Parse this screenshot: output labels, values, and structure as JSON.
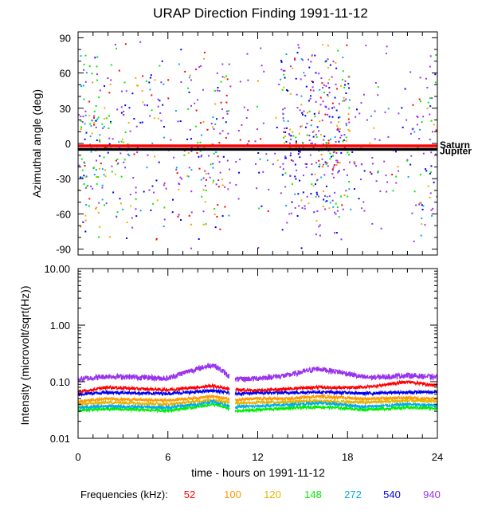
{
  "chart_data": [
    {
      "type": "scatter",
      "title": "URAP Direction Finding  1991-11-12",
      "ylabel": "Azimuthal angle (deg)",
      "xlim": [
        0,
        24
      ],
      "ylim": [
        -95,
        95
      ],
      "yticks": [
        -90,
        -60,
        -30,
        0,
        30,
        60,
        90
      ],
      "ytick_labels": [
        "-90",
        "-60",
        "-30",
        "0",
        "30",
        "60",
        "90"
      ],
      "reference_lines": [
        {
          "name": "Saturn",
          "y": -2,
          "color": "#ff0000"
        },
        {
          "name": "Jupiter",
          "y": -5,
          "color": "#000000"
        }
      ],
      "series_note": "Scattered direction-finding points per frequency channel; dense clusters near 0-2.5 h, 7-10 h, 14-18 h and 23-24 h."
    },
    {
      "type": "line",
      "ylabel": "Intensity (microvolt/sqrt(Hz))",
      "xlabel": "time - hours on 1991-11-12",
      "xlim": [
        0,
        24
      ],
      "ylim": [
        0.01,
        10
      ],
      "yscale": "log",
      "yticks": [
        0.01,
        0.1,
        1,
        10
      ],
      "ytick_labels": [
        "0.01",
        "0.10",
        "1.00",
        "10.00"
      ],
      "xticks": [
        0,
        6,
        12,
        18,
        24
      ],
      "xtick_labels": [
        "0",
        "6",
        "12",
        "18",
        "24"
      ],
      "gaps": [
        [
          10.1,
          10.5
        ]
      ],
      "series": [
        {
          "name": "52",
          "color": "#ff0000",
          "x": [
            0,
            2,
            4,
            6,
            8,
            9,
            10,
            10.5,
            12,
            14,
            16,
            18,
            19,
            20,
            22,
            24
          ],
          "values": [
            0.065,
            0.08,
            0.075,
            0.072,
            0.08,
            0.085,
            0.075,
            0.072,
            0.07,
            0.075,
            0.08,
            0.078,
            0.08,
            0.085,
            0.1,
            0.085
          ]
        },
        {
          "name": "100",
          "color": "#ff9900",
          "x": [
            0,
            2,
            4,
            6,
            8,
            9,
            10,
            10.5,
            12,
            14,
            16,
            18,
            19,
            20,
            22,
            24
          ],
          "values": [
            0.045,
            0.05,
            0.048,
            0.047,
            0.052,
            0.055,
            0.05,
            0.048,
            0.05,
            0.05,
            0.055,
            0.052,
            0.05,
            0.05,
            0.052,
            0.05
          ]
        },
        {
          "name": "120",
          "color": "#e8b400",
          "x": [
            0,
            2,
            4,
            6,
            8,
            9,
            10,
            10.5,
            12,
            14,
            16,
            18,
            19,
            20,
            22,
            24
          ],
          "values": [
            0.04,
            0.043,
            0.042,
            0.04,
            0.045,
            0.048,
            0.044,
            0.042,
            0.043,
            0.044,
            0.046,
            0.044,
            0.043,
            0.044,
            0.046,
            0.045
          ]
        },
        {
          "name": "148",
          "color": "#00ee00",
          "x": [
            0,
            2,
            4,
            6,
            8,
            9,
            10,
            10.5,
            12,
            14,
            16,
            18,
            19,
            20,
            22,
            24
          ],
          "values": [
            0.031,
            0.033,
            0.032,
            0.031,
            0.036,
            0.04,
            0.034,
            0.03,
            0.032,
            0.034,
            0.036,
            0.034,
            0.032,
            0.033,
            0.035,
            0.034
          ]
        },
        {
          "name": "272",
          "color": "#00aaee",
          "x": [
            0,
            2,
            4,
            6,
            8,
            9,
            10,
            10.5,
            12,
            14,
            16,
            18,
            19,
            20,
            22,
            24
          ],
          "values": [
            0.035,
            0.037,
            0.036,
            0.035,
            0.04,
            0.045,
            0.038,
            0.036,
            0.037,
            0.039,
            0.042,
            0.039,
            0.036,
            0.037,
            0.04,
            0.038
          ]
        },
        {
          "name": "540",
          "color": "#0000ee",
          "x": [
            0,
            2,
            4,
            6,
            8,
            9,
            10,
            10.5,
            12,
            14,
            16,
            18,
            19,
            20,
            22,
            24
          ],
          "values": [
            0.06,
            0.065,
            0.063,
            0.062,
            0.066,
            0.07,
            0.064,
            0.062,
            0.063,
            0.064,
            0.066,
            0.064,
            0.062,
            0.063,
            0.065,
            0.066
          ]
        },
        {
          "name": "940",
          "color": "#9933ee",
          "x": [
            0,
            2,
            4,
            6,
            8,
            9,
            10,
            10.5,
            12,
            14,
            16,
            18,
            19,
            20,
            22,
            24
          ],
          "values": [
            0.11,
            0.125,
            0.12,
            0.115,
            0.17,
            0.2,
            0.13,
            0.11,
            0.115,
            0.13,
            0.17,
            0.14,
            0.12,
            0.12,
            0.13,
            0.12
          ]
        }
      ]
    }
  ],
  "legend": {
    "title": "Frequencies (kHz):",
    "items": [
      {
        "label": "52",
        "color": "#ff0000"
      },
      {
        "label": "100",
        "color": "#ff9900"
      },
      {
        "label": "120",
        "color": "#e8b400"
      },
      {
        "label": "148",
        "color": "#00ee00"
      },
      {
        "label": "272",
        "color": "#00aaee"
      },
      {
        "label": "540",
        "color": "#0000ee"
      },
      {
        "label": "940",
        "color": "#9933ee"
      }
    ]
  }
}
